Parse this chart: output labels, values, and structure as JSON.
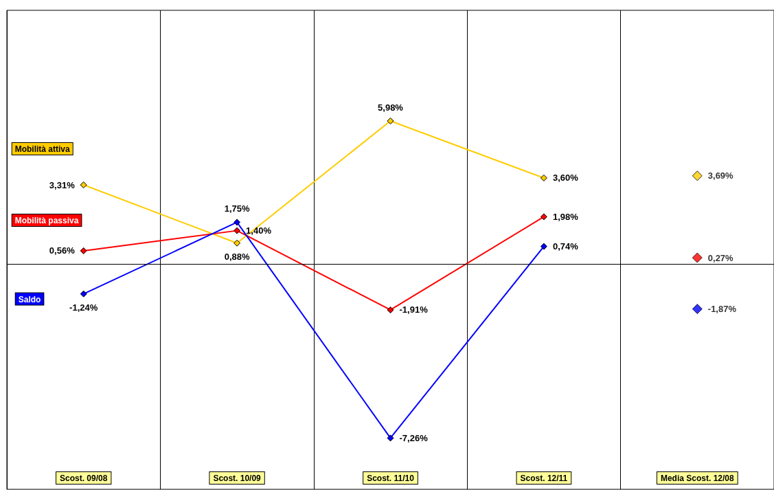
{
  "chart_data": {
    "type": "line",
    "categories": [
      "Scost. 09/08",
      "Scost. 10/09",
      "Scost. 11/10",
      "Scost. 12/11",
      "Media Scost. 12/08"
    ],
    "ylim": [
      -9.4,
      10.6
    ],
    "tick_labels": "x",
    "grid": "x",
    "marker": "diamond",
    "line_style": "solid",
    "ref_lines": [
      {
        "axis": "y",
        "value": 0
      }
    ],
    "series": [
      {
        "name": "Mobilità attiva",
        "color": "#ffcc00",
        "values": [
          3.31,
          0.88,
          5.98,
          3.6,
          null
        ],
        "value_labels": [
          "3,31%",
          "0,88%",
          "5,98%",
          "3,60%",
          null
        ]
      },
      {
        "name": "Mobilità passiva",
        "color": "#ff0000",
        "values": [
          0.56,
          1.4,
          -1.91,
          1.98,
          null
        ],
        "value_labels": [
          "0,56%",
          "1,40%",
          "-1,91%",
          "1,98%",
          null
        ]
      },
      {
        "name": "Saldo",
        "color": "#0000ff",
        "values": [
          -1.24,
          1.75,
          -7.26,
          0.74,
          null
        ],
        "value_labels": [
          "-1,24%",
          "1,75%",
          "-7,26%",
          "0,74%",
          null
        ]
      },
      {
        "type": "scatter",
        "color": "#ffcc00",
        "values": [
          null,
          null,
          null,
          null,
          3.69
        ],
        "value_labels": [
          null,
          null,
          null,
          null,
          "3,69%"
        ]
      },
      {
        "type": "scatter",
        "color": "#ff0000",
        "values": [
          null,
          null,
          null,
          null,
          0.27
        ],
        "value_labels": [
          null,
          null,
          null,
          null,
          "0,27%"
        ]
      },
      {
        "type": "scatter",
        "color": "#0000ff",
        "values": [
          null,
          null,
          null,
          null,
          -1.87
        ],
        "value_labels": [
          null,
          null,
          null,
          null,
          "-1,87%"
        ]
      }
    ]
  }
}
